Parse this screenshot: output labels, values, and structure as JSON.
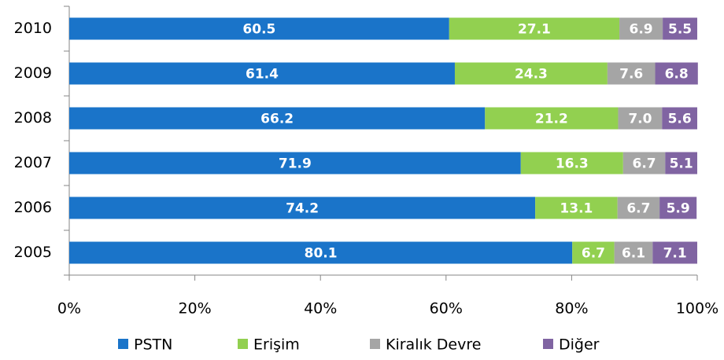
{
  "chart_data": {
    "type": "stacked-bar-horizontal",
    "categories": [
      "2010",
      "2009",
      "2008",
      "2007",
      "2006",
      "2005"
    ],
    "series": [
      {
        "name": "PSTN",
        "color": "#1a74c9",
        "values": [
          60.5,
          61.4,
          66.2,
          71.9,
          74.2,
          80.1
        ],
        "value_labels": [
          "60.5",
          "61.4",
          "66.2",
          "71.9",
          "74.2",
          "80.1"
        ]
      },
      {
        "name": "Erişim",
        "color": "#92d050",
        "values": [
          27.1,
          24.3,
          21.2,
          16.3,
          13.1,
          6.7
        ],
        "value_labels": [
          "27.1",
          "24.3",
          "21.2",
          "16.3",
          "13.1",
          "6.7"
        ]
      },
      {
        "name": "Kiralık Devre",
        "color": "#a5a5a5",
        "values": [
          6.9,
          7.6,
          7.0,
          6.7,
          6.7,
          6.1
        ],
        "value_labels": [
          "6.9",
          "7.6",
          "7.0",
          "6.7",
          "6.7",
          "6.1"
        ]
      },
      {
        "name": "Diğer",
        "color": "#8064a2",
        "values": [
          5.5,
          6.8,
          5.6,
          5.1,
          5.9,
          7.1
        ],
        "value_labels": [
          "5.5",
          "6.8",
          "5.6",
          "5.1",
          "5.9",
          "7.1"
        ]
      }
    ],
    "xlim": [
      0,
      100
    ],
    "xticks": [
      {
        "value": 0,
        "label": "0%"
      },
      {
        "value": 20,
        "label": "20%"
      },
      {
        "value": 40,
        "label": "40%"
      },
      {
        "value": 60,
        "label": "60%"
      },
      {
        "value": 80,
        "label": "80%"
      },
      {
        "value": 100,
        "label": "100%"
      }
    ],
    "legend": "bottom"
  }
}
